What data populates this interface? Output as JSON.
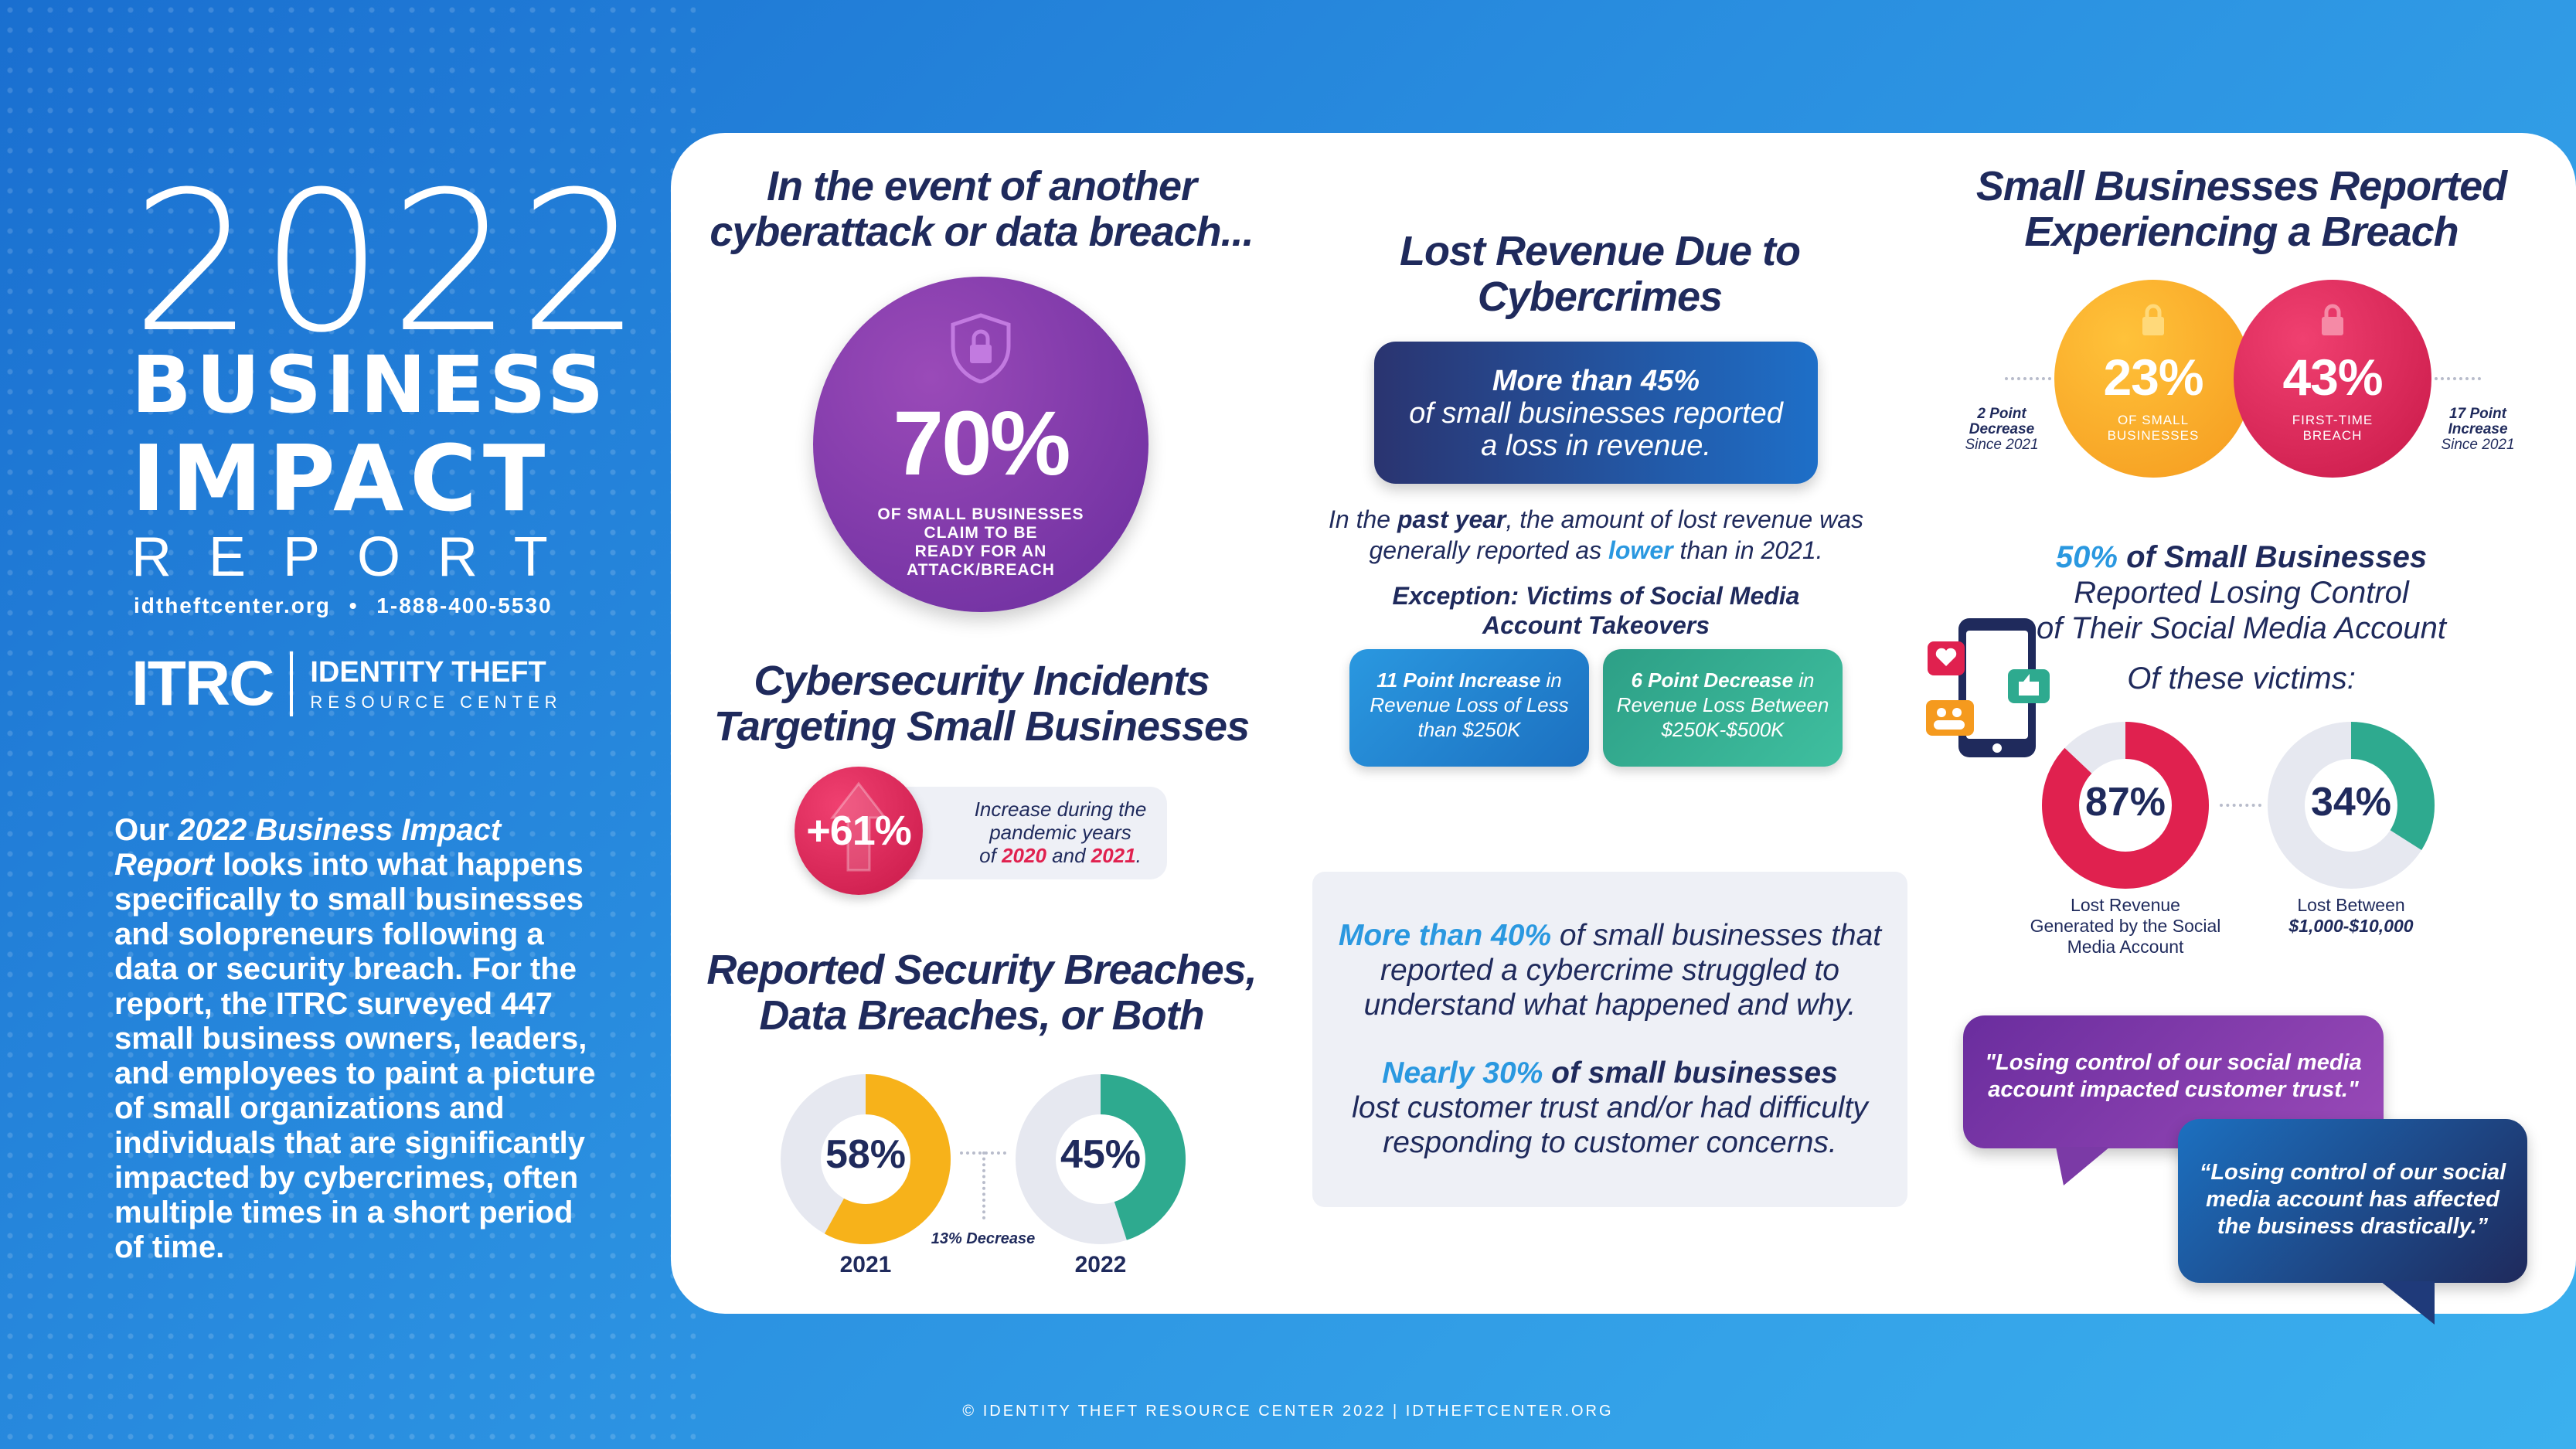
{
  "left": {
    "year": "2022",
    "title1": "BUSINESS",
    "title2": "IMPACT",
    "title3": "REPORT",
    "website": "idtheftcenter.org",
    "phone": "1-888-400-5530",
    "logo_mark": "ITRC",
    "logo_line1": "IDENTITY THEFT",
    "logo_line2": "RESOURCE CENTER",
    "intro_pre": "Our ",
    "intro_em": "2022 Business Impact Report",
    "intro_post": " looks into what happens specifically to small businesses and solopreneurs following a data or security breach. For the report, the ITRC surveyed 447 small business owners, leaders, and employees to paint a picture of small organizations and individuals that are significantly impacted by cybercrimes, often multiple times in a short period of time."
  },
  "ready": {
    "heading1": "In the event of another",
    "heading2": "cyberattack or data breach...",
    "value": "70%",
    "caption1": "OF SMALL BUSINESSES",
    "caption2": "CLAIM TO BE",
    "caption3": "READY FOR AN",
    "caption4": "ATTACK/BREACH"
  },
  "incidents": {
    "heading1": "Cybersecurity Incidents",
    "heading2": "Targeting Small Businesses",
    "value": "+61%",
    "text1": "Increase during the",
    "text2": "pandemic years",
    "text3_pre": "of ",
    "year_a": "2020",
    "text3_mid": " and ",
    "year_b": "2021",
    "text3_post": "."
  },
  "breaches": {
    "heading1": "Reported Security Breaches,",
    "heading2": "Data Breaches, or Both",
    "v2021": "58%",
    "v2022": "45%",
    "label2021": "2021",
    "label2022": "2022",
    "change": "13% Decrease",
    "fill2021": 0.58,
    "fill2022": 0.45
  },
  "revenue": {
    "heading1": "Lost Revenue Due to",
    "heading2": "Cybercrimes",
    "box_bold": "More than 45%",
    "box_line2": "of small businesses reported",
    "box_line3": "a loss in revenue.",
    "p1_pre": "In the ",
    "p1_bold": "past year",
    "p1_post": ", the amount of lost revenue was",
    "p2_pre": "generally reported as ",
    "p2_bold": "lower",
    "p2_post": " than in 2021.",
    "exception1": "Exception: Victims of Social Media",
    "exception2": "Account Takeovers",
    "pill1_bold": "11 Point Increase",
    "pill1_rest": " in",
    "pill1_l2": "Revenue Loss of Less",
    "pill1_l3": "than $250K",
    "pill2_bold": "6 Point Decrease",
    "pill2_rest": " in",
    "pill2_l2": "Revenue Loss Between",
    "pill2_l3": "$250K-$500K"
  },
  "struggle": {
    "b1": "More than 40%",
    "t1": " of small businesses that",
    "l2": "reported a cybercrime struggled to",
    "l3": "understand what happened and why.",
    "b2": "Nearly 30%",
    "b2b": " of small businesses",
    "l5": "lost customer trust and/or had difficulty",
    "l6": "responding to customer concerns."
  },
  "experienced": {
    "heading1": "Small Businesses Reported",
    "heading2": "Experiencing a Breach",
    "v1": "23%",
    "cap1a": "OF SMALL",
    "cap1b": "BUSINESSES",
    "v2": "43%",
    "cap2a": "FIRST-TIME",
    "cap2b": "BREACH",
    "left_note1": "2 Point",
    "left_note2": "Decrease",
    "left_note3": "Since 2021",
    "right_note1": "17 Point",
    "right_note2": "Increase",
    "right_note3": "Since 2021"
  },
  "social": {
    "bold": "50%",
    "h1_rest": " of Small Businesses",
    "h2": "Reported Losing Control",
    "h3": "of Their Social Media Account",
    "sub": "Of these victims:",
    "v1": "87%",
    "v2": "34%",
    "fill1": 0.87,
    "fill2": 0.34,
    "lab1a": "Lost Revenue",
    "lab1b": "Generated by the Social",
    "lab1c": "Media Account",
    "lab2a": "Lost Between",
    "lab2b": "$1,000-$10,000"
  },
  "quotes": {
    "q1a": "\"Losing control of our social media",
    "q1b": "account impacted customer trust.\"",
    "q2a": "“Losing control of our social",
    "q2b": "media account has affected",
    "q2c": "the business drastically.”"
  },
  "footer": "© IDENTITY THEFT RESOURCE CENTER 2022  |  IDTHEFTCENTER.ORG",
  "colors": {
    "navy": "#1f2a5c",
    "blue": "#2a98e0",
    "purple": "#7b3aa6",
    "red": "#e0214f",
    "orange": "#f59a1e",
    "teal": "#2eaa8f",
    "gray": "#e6e8f0"
  }
}
